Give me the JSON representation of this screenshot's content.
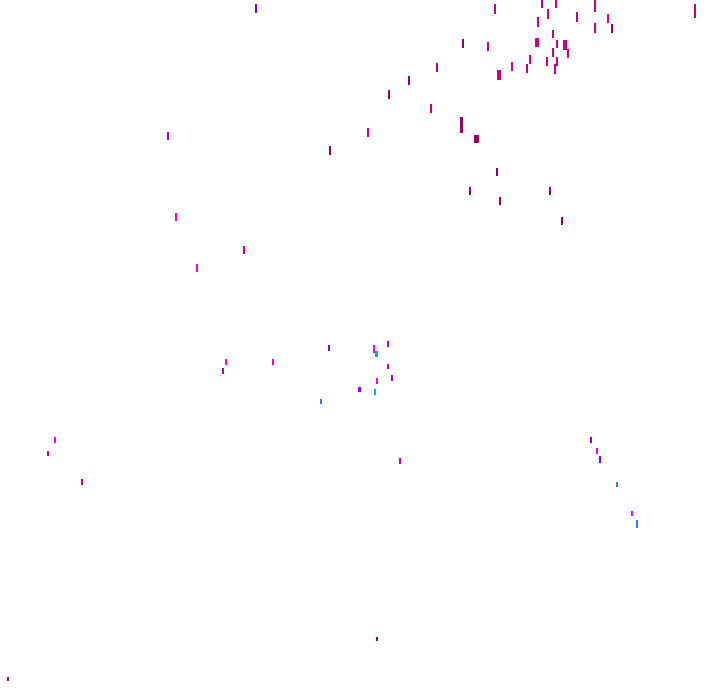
{
  "colors": {
    "background": "#ffffff",
    "magenta": "#cc0088",
    "dark_magenta": "#990066",
    "pink": "#ff00cc",
    "violet": "#7700ff",
    "purple": "#9900ee",
    "blue": "#3377ff",
    "cyan": "#00aaee"
  }
}
